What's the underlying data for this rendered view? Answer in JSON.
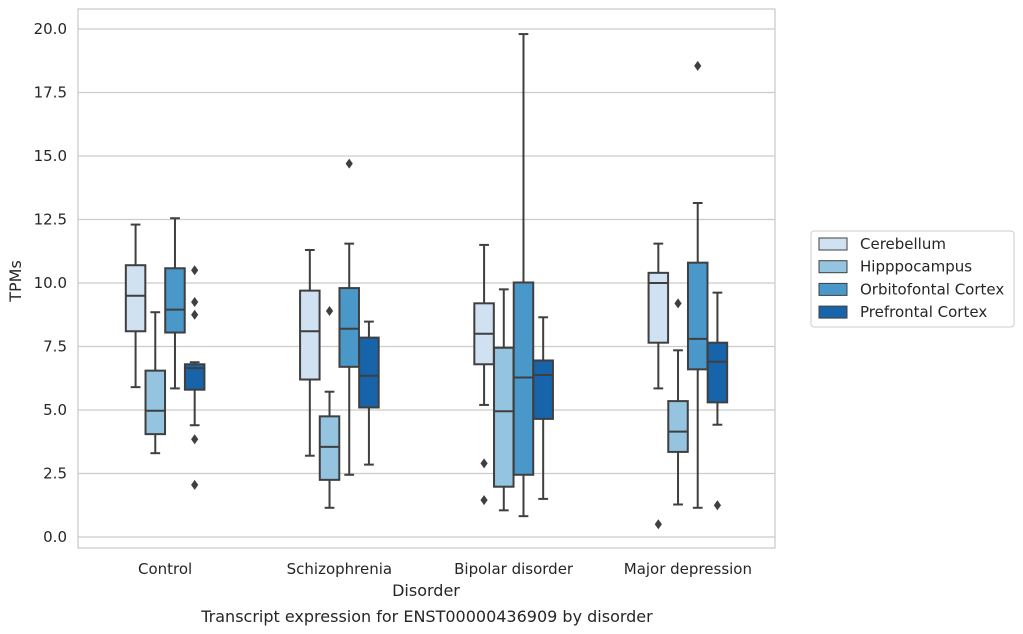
{
  "chart_data": {
    "type": "box",
    "caption": "Transcript expression for ENST00000436909 by disorder",
    "xlabel": "Disorder",
    "ylabel": "TPMs",
    "ylim": [
      -0.45,
      20.75
    ],
    "yticks": [
      0.0,
      2.5,
      5.0,
      7.5,
      10.0,
      12.5,
      15.0,
      17.5,
      20.0
    ],
    "ytick_labels": [
      "0.0",
      "2.5",
      "5.0",
      "7.5",
      "10.0",
      "12.5",
      "15.0",
      "17.5",
      "20.0"
    ],
    "grid": "horizontal",
    "legend_position": "center-right",
    "categories": [
      "Control",
      "Schizophrenia",
      "Bipolar disorder",
      "Major depression"
    ],
    "series": [
      {
        "name": "Cerebellum",
        "color": "#d0e1f2",
        "boxes": [
          {
            "whisker_low": 5.9,
            "q1": 8.1,
            "median": 9.5,
            "q3": 10.7,
            "whisker_high": 12.3,
            "outliers": []
          },
          {
            "whisker_low": 3.2,
            "q1": 6.2,
            "median": 8.1,
            "q3": 9.7,
            "whisker_high": 11.3,
            "outliers": []
          },
          {
            "whisker_low": 5.2,
            "q1": 6.8,
            "median": 8.0,
            "q3": 9.2,
            "whisker_high": 11.5,
            "outliers": [
              2.9,
              1.45
            ]
          },
          {
            "whisker_low": 5.85,
            "q1": 7.65,
            "median": 10.0,
            "q3": 10.4,
            "whisker_high": 11.55,
            "outliers": [
              0.5
            ]
          }
        ]
      },
      {
        "name": "Hipppocampus",
        "color": "#94c4df",
        "boxes": [
          {
            "whisker_low": 3.3,
            "q1": 4.05,
            "median": 4.97,
            "q3": 6.55,
            "whisker_high": 8.85,
            "outliers": []
          },
          {
            "whisker_low": 1.15,
            "q1": 2.25,
            "median": 3.55,
            "q3": 4.75,
            "whisker_high": 5.72,
            "outliers": [
              8.9
            ]
          },
          {
            "whisker_low": 1.05,
            "q1": 1.98,
            "median": 4.95,
            "q3": 7.45,
            "whisker_high": 9.75,
            "outliers": []
          },
          {
            "whisker_low": 1.28,
            "q1": 3.35,
            "median": 4.15,
            "q3": 5.35,
            "whisker_high": 7.35,
            "outliers": [
              9.2
            ]
          }
        ]
      },
      {
        "name": "Orbitofontal Cortex",
        "color": "#4a98c9",
        "boxes": [
          {
            "whisker_low": 5.85,
            "q1": 8.05,
            "median": 8.95,
            "q3": 10.58,
            "whisker_high": 12.55,
            "outliers": []
          },
          {
            "whisker_low": 2.45,
            "q1": 6.7,
            "median": 8.2,
            "q3": 9.8,
            "whisker_high": 11.55,
            "outliers": [
              14.7
            ]
          },
          {
            "whisker_low": 0.82,
            "q1": 2.45,
            "median": 6.28,
            "q3": 10.02,
            "whisker_high": 19.8,
            "outliers": []
          },
          {
            "whisker_low": 1.15,
            "q1": 6.6,
            "median": 7.8,
            "q3": 10.8,
            "whisker_high": 13.15,
            "outliers": [
              18.55
            ]
          }
        ]
      },
      {
        "name": "Prefrontal Cortex",
        "color": "#1764ab",
        "boxes": [
          {
            "whisker_low": 4.4,
            "q1": 5.8,
            "median": 6.65,
            "q3": 6.8,
            "whisker_high": 6.88,
            "outliers": [
              10.5,
              9.25,
              8.75,
              3.85,
              2.05
            ]
          },
          {
            "whisker_low": 2.85,
            "q1": 5.1,
            "median": 6.35,
            "q3": 7.85,
            "whisker_high": 8.48,
            "outliers": []
          },
          {
            "whisker_low": 1.5,
            "q1": 4.65,
            "median": 6.38,
            "q3": 6.95,
            "whisker_high": 8.65,
            "outliers": []
          },
          {
            "whisker_low": 4.42,
            "q1": 5.3,
            "median": 6.9,
            "q3": 7.65,
            "whisker_high": 9.62,
            "outliers": [
              1.25
            ]
          }
        ]
      }
    ]
  }
}
